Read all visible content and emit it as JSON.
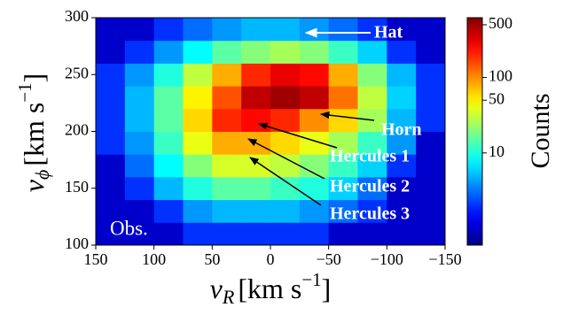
{
  "chart_data": {
    "type": "heatmap",
    "xlabel": {
      "symbol": "v",
      "sub": "R",
      "unit": "[km s",
      "exp": "−1",
      "close": "]"
    },
    "ylabel": {
      "symbol": "v",
      "sub": "ϕ",
      "unit": "[km s",
      "exp": "−1",
      "close": "]"
    },
    "xlim": [
      150,
      -150
    ],
    "xticks": [
      150,
      100,
      50,
      0,
      {
        "value": -50,
        "label": "−50"
      },
      {
        "value": -100,
        "label": "−100"
      },
      {
        "value": -150,
        "label": "−150"
      }
    ],
    "ylim": [
      100,
      300
    ],
    "yticks": [
      100,
      150,
      200,
      250,
      300
    ],
    "xbins": [
      150,
      125,
      100,
      75,
      50,
      25,
      0,
      -25,
      -50,
      -75,
      -100,
      -125,
      -150
    ],
    "ybins": [
      100,
      120,
      140,
      160,
      180,
      200,
      220,
      240,
      260,
      280,
      300
    ],
    "z": [
      [
        1,
        1,
        1,
        2,
        2,
        2,
        2,
        2,
        1,
        1,
        1,
        1
      ],
      [
        1,
        1,
        2,
        4,
        5,
        5,
        5,
        4,
        3,
        2,
        1,
        1
      ],
      [
        1,
        2,
        5,
        10,
        15,
        15,
        12,
        10,
        6,
        3,
        1,
        1
      ],
      [
        1,
        3,
        8,
        20,
        35,
        35,
        30,
        20,
        12,
        6,
        2,
        1
      ],
      [
        2,
        4,
        12,
        40,
        80,
        80,
        60,
        40,
        25,
        12,
        4,
        1
      ],
      [
        2,
        5,
        15,
        60,
        200,
        250,
        200,
        100,
        60,
        25,
        5,
        2
      ],
      [
        2,
        5,
        15,
        50,
        150,
        400,
        500,
        400,
        120,
        30,
        6,
        2
      ],
      [
        2,
        4,
        10,
        30,
        80,
        200,
        300,
        250,
        80,
        20,
        5,
        2
      ],
      [
        1,
        2,
        4,
        8,
        15,
        20,
        25,
        20,
        12,
        6,
        2,
        1
      ],
      [
        1,
        1,
        2,
        3,
        4,
        5,
        5,
        4,
        3,
        2,
        1,
        1
      ]
    ],
    "colormap": "jet",
    "color_scale": "log",
    "clim": [
      0.6,
      620
    ],
    "cticks": [
      10,
      50,
      100,
      500
    ],
    "colorbar_label": "Counts",
    "annotations": [
      "Hat",
      "Horn",
      "Hercules 1",
      "Hercules 2",
      "Hercules 3"
    ],
    "panel_label": "Obs."
  }
}
